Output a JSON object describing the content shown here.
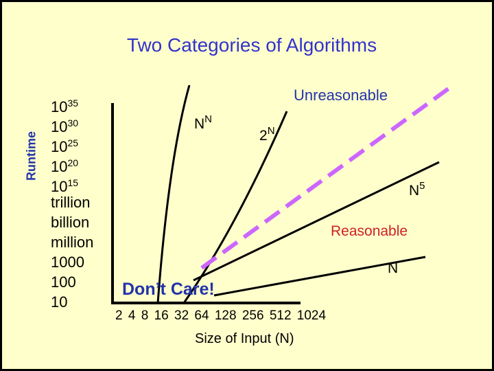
{
  "slide": {
    "background": "#ffffcc",
    "title_color": "#3333cc"
  },
  "chart_data": {
    "type": "line",
    "title": "Two Categories of Algorithms",
    "xlabel": "Size of Input (N)",
    "ylabel": "Runtime",
    "x_ticks": [
      "2",
      "4",
      "8",
      "16",
      "32",
      "64",
      "128",
      "256",
      "512",
      "1024"
    ],
    "y_ticks": [
      {
        "base": "10",
        "exp": "35"
      },
      {
        "base": "10",
        "exp": "30"
      },
      {
        "base": "10",
        "exp": "25"
      },
      {
        "base": "10",
        "exp": "20"
      },
      {
        "base": "10",
        "exp": "15"
      },
      {
        "base": "trillion",
        "exp": ""
      },
      {
        "base": "billion",
        "exp": ""
      },
      {
        "base": "million",
        "exp": ""
      },
      {
        "base": "1000",
        "exp": ""
      },
      {
        "base": "100",
        "exp": ""
      },
      {
        "base": "10",
        "exp": ""
      }
    ],
    "series": [
      {
        "name": "N^N",
        "base": "N",
        "exp": "N",
        "color": "#000000",
        "style": "solid"
      },
      {
        "name": "2^N",
        "base": "2",
        "exp": "N",
        "color": "#000000",
        "style": "solid"
      },
      {
        "name": "N^5",
        "base": "N",
        "exp": "5",
        "color": "#000000",
        "style": "solid"
      },
      {
        "name": "N",
        "base": "N",
        "exp": "",
        "color": "#000000",
        "style": "solid"
      },
      {
        "name": "",
        "color": "#cc66ff",
        "style": "dashed"
      }
    ],
    "annotations": {
      "unreasonable": "Unreasonable",
      "reasonable": "Reasonable",
      "dont_care": "Don’t Care!"
    },
    "annotation_colors": {
      "unreasonable": "#2233aa",
      "reasonable": "#cc2222",
      "dont_care": "#2233aa"
    },
    "grid": false,
    "legend": "none"
  }
}
